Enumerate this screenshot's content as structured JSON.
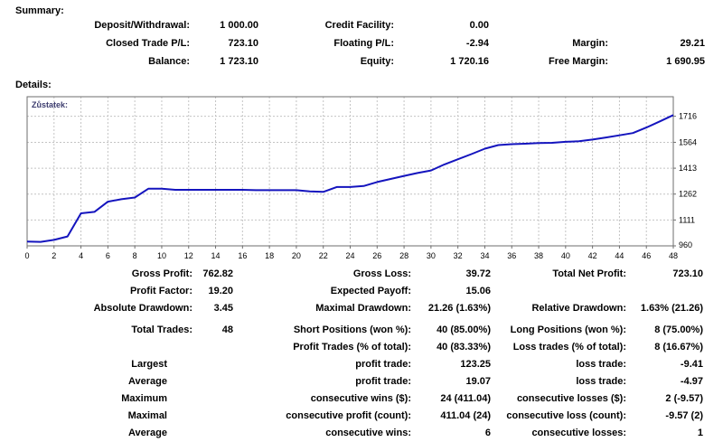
{
  "summary": {
    "heading": "Summary:",
    "rows": [
      {
        "l1": "Deposit/Withdrawal:",
        "v1": "1 000.00",
        "l2": "Credit Facility:",
        "v2": "0.00",
        "l3": "",
        "v3": ""
      },
      {
        "l1": "Closed Trade P/L:",
        "v1": "723.10",
        "l2": "Floating P/L:",
        "v2": "-2.94",
        "l3": "Margin:",
        "v3": "29.21"
      },
      {
        "l1": "Balance:",
        "v1": "1 723.10",
        "l2": "Equity:",
        "v2": "1 720.16",
        "l3": "Free Margin:",
        "v3": "1 690.95"
      }
    ]
  },
  "details": {
    "heading": "Details:",
    "rows": [
      {
        "l1": "Gross Profit:",
        "v1": "762.82",
        "l2": "Gross Loss:",
        "v2": "39.72",
        "l3": "Total Net Profit:",
        "v3": "723.10"
      },
      {
        "l1": "Profit Factor:",
        "v1": "19.20",
        "l2": "Expected Payoff:",
        "v2": "15.06",
        "l3": "",
        "v3": ""
      },
      {
        "l1": "Absolute Drawdown:",
        "v1": "3.45",
        "l2": "Maximal Drawdown:",
        "v2": "21.26 (1.63%)",
        "l3": "Relative Drawdown:",
        "v3": "1.63% (21.26)"
      },
      {
        "l1": "Total Trades:",
        "v1": "48",
        "l2": "Short Positions (won %):",
        "v2": "40 (85.00%)",
        "l3": "Long Positions (won %):",
        "v3": "8 (75.00%)"
      },
      {
        "l1": "",
        "v1": "",
        "l2": "Profit Trades (% of total):",
        "v2": "40 (83.33%)",
        "l3": "Loss trades (% of total):",
        "v3": "8 (16.67%)"
      },
      {
        "l1": "Largest",
        "v1": "",
        "l2": "profit trade:",
        "v2": "123.25",
        "l3": "loss trade:",
        "v3": "-9.41"
      },
      {
        "l1": "Average",
        "v1": "",
        "l2": "profit trade:",
        "v2": "19.07",
        "l3": "loss trade:",
        "v3": "-4.97"
      },
      {
        "l1": "Maximum",
        "v1": "",
        "l2": "consecutive wins ($):",
        "v2": "24 (411.04)",
        "l3": "consecutive losses ($):",
        "v3": "2 (-9.57)"
      },
      {
        "l1": "Maximal",
        "v1": "",
        "l2": "consecutive profit (count):",
        "v2": "411.04 (24)",
        "l3": "consecutive loss (count):",
        "v3": "-9.57 (2)"
      },
      {
        "l1": "Average",
        "v1": "",
        "l2": "consecutive wins:",
        "v2": "6",
        "l3": "consecutive losses:",
        "v3": "1"
      }
    ]
  },
  "chart_data": {
    "type": "line",
    "title": "Zůstatek:",
    "xlabel": "",
    "ylabel": "",
    "xlim": [
      0,
      48
    ],
    "ylim": [
      960,
      1830
    ],
    "xticks": [
      0,
      2,
      4,
      6,
      8,
      10,
      12,
      14,
      16,
      18,
      20,
      22,
      24,
      26,
      28,
      30,
      32,
      34,
      36,
      38,
      40,
      42,
      44,
      46,
      48
    ],
    "yticks": [
      960,
      1111,
      1262,
      1413,
      1564,
      1716
    ],
    "grid": true,
    "legend_position": "top-left-inside",
    "line_color": "#1414bE",
    "grid_color": "#c4c4c4",
    "border_color": "#6e6e6e",
    "x": [
      0,
      1,
      2,
      3,
      4,
      5,
      6,
      7,
      8,
      9,
      10,
      11,
      12,
      13,
      14,
      15,
      16,
      17,
      18,
      19,
      20,
      21,
      22,
      23,
      24,
      25,
      26,
      27,
      28,
      29,
      30,
      31,
      32,
      33,
      34,
      35,
      36,
      37,
      38,
      39,
      40,
      41,
      42,
      43,
      44,
      45,
      46,
      47,
      48
    ],
    "values": [
      985,
      983,
      995,
      1015,
      1150,
      1158,
      1218,
      1232,
      1242,
      1293,
      1293,
      1287,
      1287,
      1287,
      1287,
      1287,
      1287,
      1285,
      1285,
      1285,
      1285,
      1278,
      1275,
      1303,
      1303,
      1309,
      1332,
      1350,
      1368,
      1385,
      1400,
      1435,
      1465,
      1495,
      1527,
      1548,
      1553,
      1556,
      1560,
      1561,
      1567,
      1570,
      1580,
      1592,
      1605,
      1618,
      1650,
      1686,
      1723
    ]
  }
}
